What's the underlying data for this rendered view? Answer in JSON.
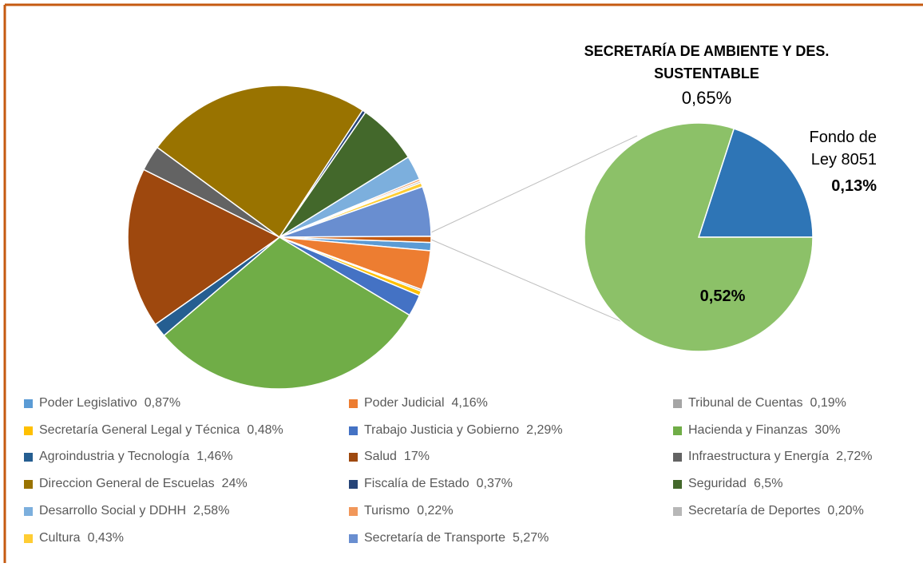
{
  "chart_data": {
    "type": "pie",
    "categories": [
      "Poder Legislativo",
      "Poder Judicial",
      "Tribunal de Cuentas",
      "Secretaría General Legal y Técnica",
      "Trabajo Justicia y Gobierno",
      "Hacienda y Finanzas",
      "Agroindustria y Tecnología",
      "Salud",
      "Infraestructura y Energía",
      "Direccion General de Escuelas",
      "Fiscalía de Estado",
      "Seguridad",
      "Desarrollo Social y DDHH",
      "Turismo",
      "Secretaría de Deportes",
      "Cultura",
      "Secretaría de Transporte"
    ],
    "values": [
      0.87,
      4.16,
      0.19,
      0.48,
      2.29,
      30,
      1.46,
      17,
      2.72,
      24,
      0.37,
      6.5,
      2.58,
      0.22,
      0.2,
      0.43,
      5.27
    ],
    "value_labels": [
      "0,87%",
      "4,16%",
      "0,19%",
      "0,48%",
      "2,29%",
      "30%",
      "1,46%",
      "17%",
      "2,72%",
      "24%",
      "0,37%",
      "6,5%",
      "2,58%",
      "0,22%",
      "0,20%",
      "0,43%",
      "5,27%"
    ],
    "colors": [
      "#5b9bd5",
      "#ed7d31",
      "#a5a5a5",
      "#ffc000",
      "#4472c4",
      "#70ad47",
      "#255e91",
      "#9e480e",
      "#636363",
      "#997300",
      "#264478",
      "#43682b",
      "#7cafdd",
      "#f1975a",
      "#b7b7b7",
      "#ffcd33",
      "#698ed0"
    ],
    "secondary": {
      "name": "SECRETARÍA DE AMBIENTE Y DES. SUSTENTABLE",
      "value": 0.65,
      "value_label": "0,65%",
      "color": "#c55a11",
      "categories": [
        "Fondo de Ley 8051",
        null
      ],
      "values": [
        0.13,
        0.52
      ],
      "value_labels": [
        "0,13%",
        "0,52%"
      ],
      "colors": [
        "#2e75b6",
        "#8cc168"
      ]
    }
  }
}
